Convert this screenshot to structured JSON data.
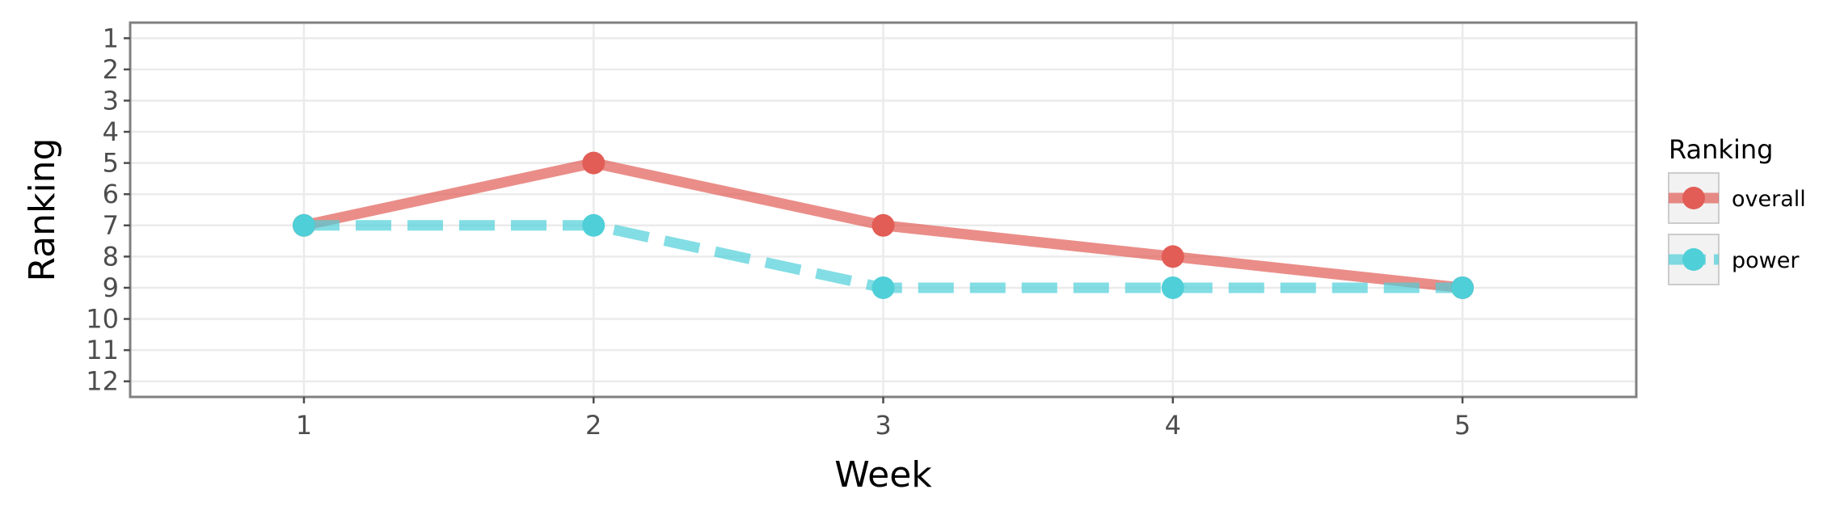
{
  "chart_data": {
    "type": "line",
    "title": "",
    "xlabel": "Week",
    "ylabel": "Ranking",
    "x": [
      1,
      2,
      3,
      4,
      5
    ],
    "x_ticks": [
      "1",
      "2",
      "3",
      "4",
      "5"
    ],
    "xlim": [
      0.4,
      5.6
    ],
    "y_ticks": [
      "1",
      "2",
      "3",
      "4",
      "5",
      "6",
      "7",
      "8",
      "9",
      "10",
      "11",
      "12"
    ],
    "ylim": [
      0.5,
      12.5
    ],
    "y_reversed": true,
    "grid": true,
    "legend_title": "Ranking",
    "legend_position": "right",
    "series": [
      {
        "name": "overall",
        "values": [
          7,
          5,
          7,
          8,
          9
        ],
        "color": "#e15d55",
        "line_style": "solid"
      },
      {
        "name": "power",
        "values": [
          7,
          7,
          9,
          9,
          9
        ],
        "color": "#4fcfd8",
        "line_style": "dashed"
      }
    ]
  }
}
